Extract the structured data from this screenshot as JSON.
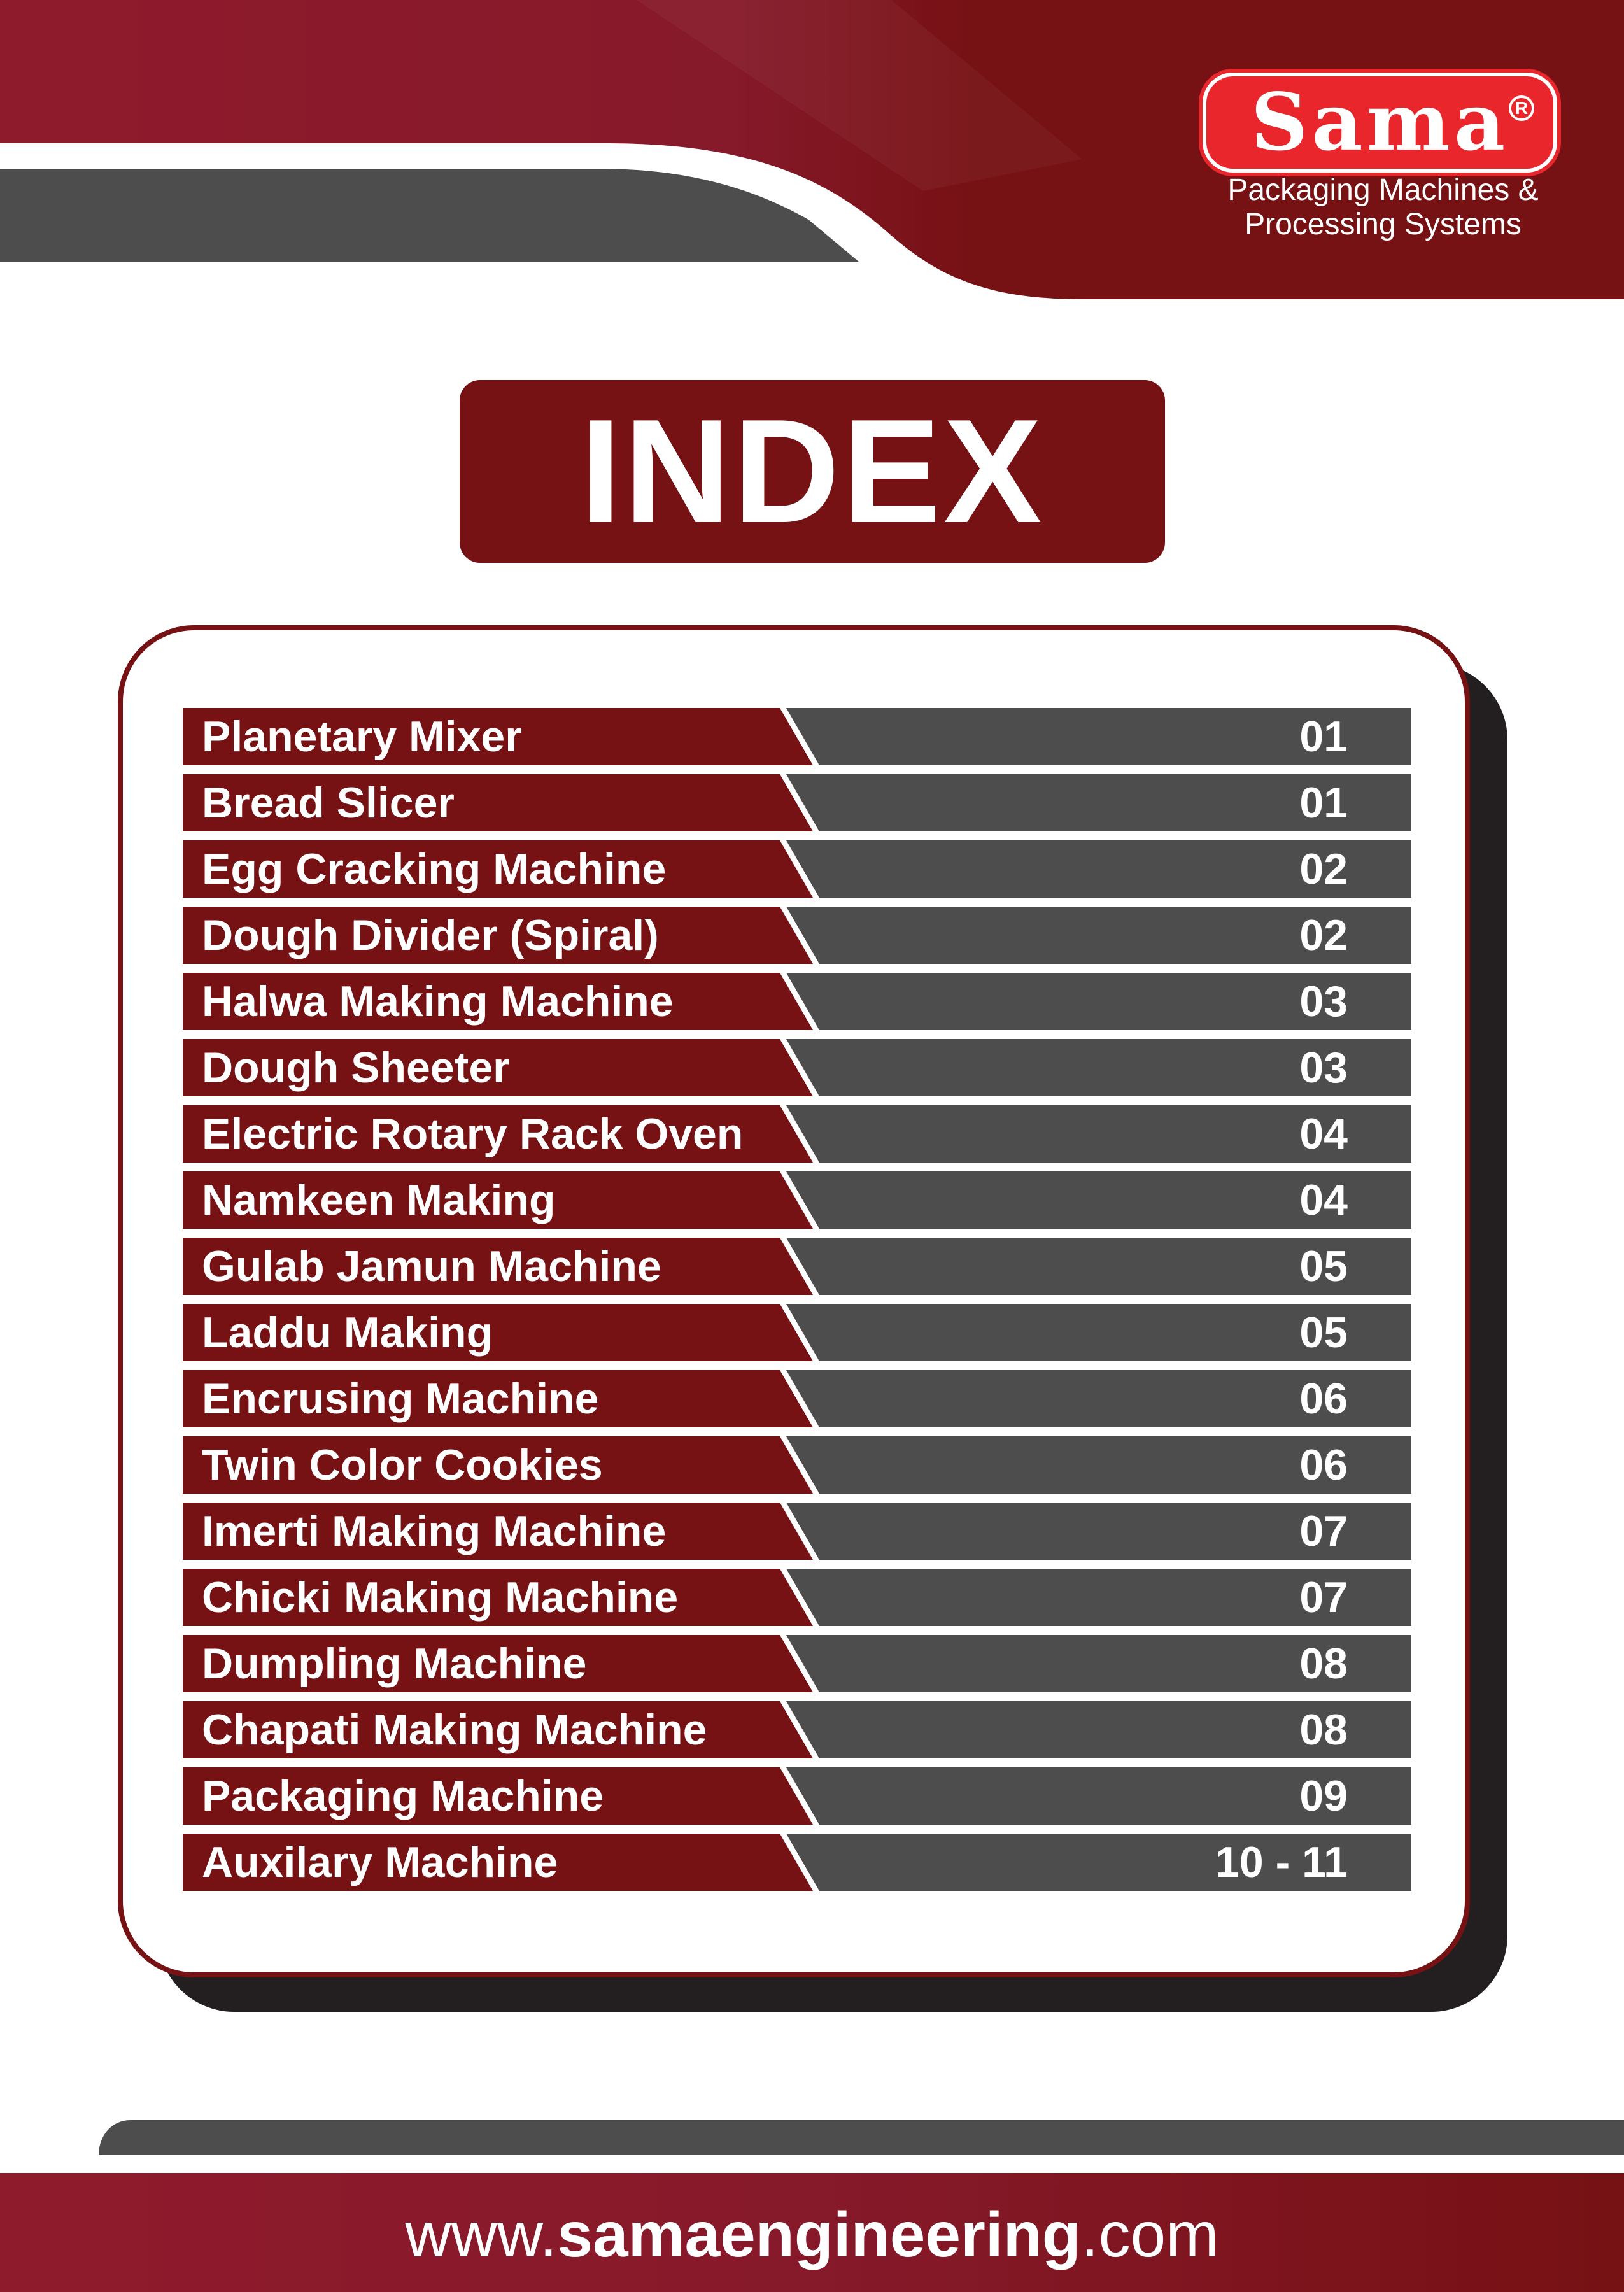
{
  "brand": {
    "logo_text": "Sama",
    "registered_mark": "R",
    "tagline_line1": "Packaging Machines &",
    "tagline_line2": "Processing Systems"
  },
  "title": "INDEX",
  "index": [
    {
      "label": "Planetary Mixer",
      "page": "01"
    },
    {
      "label": "Bread Slicer",
      "page": "01"
    },
    {
      "label": "Egg Cracking Machine",
      "page": "02"
    },
    {
      "label": "Dough Divider (Spiral)",
      "page": "02"
    },
    {
      "label": "Halwa Making Machine",
      "page": "03"
    },
    {
      "label": "Dough Sheeter",
      "page": "03"
    },
    {
      "label": "Electric Rotary Rack Oven",
      "page": "04"
    },
    {
      "label": "Namkeen Making",
      "page": "04"
    },
    {
      "label": "Gulab Jamun Machine",
      "page": "05"
    },
    {
      "label": "Laddu Making",
      "page": "05"
    },
    {
      "label": "Encrusing Machine",
      "page": "06"
    },
    {
      "label": "Twin Color Cookies",
      "page": "06"
    },
    {
      "label": "Imerti Making Machine",
      "page": "07"
    },
    {
      "label": "Chicki Making Machine",
      "page": "07"
    },
    {
      "label": "Dumpling Machine",
      "page": "08"
    },
    {
      "label": "Chapati Making Machine",
      "page": "08"
    },
    {
      "label": "Packaging Machine",
      "page": "09"
    },
    {
      "label": "Auxilary Machine",
      "page": "10 - 11"
    }
  ],
  "footer": {
    "prefix": "www.",
    "domain": "samaengineering",
    "suffix": ".com"
  },
  "colors": {
    "maroon": "#761114",
    "crimson": "#8e1b2c",
    "grey": "#4d4d4d",
    "shadow": "#231f20",
    "logo_red": "#e8262c"
  }
}
